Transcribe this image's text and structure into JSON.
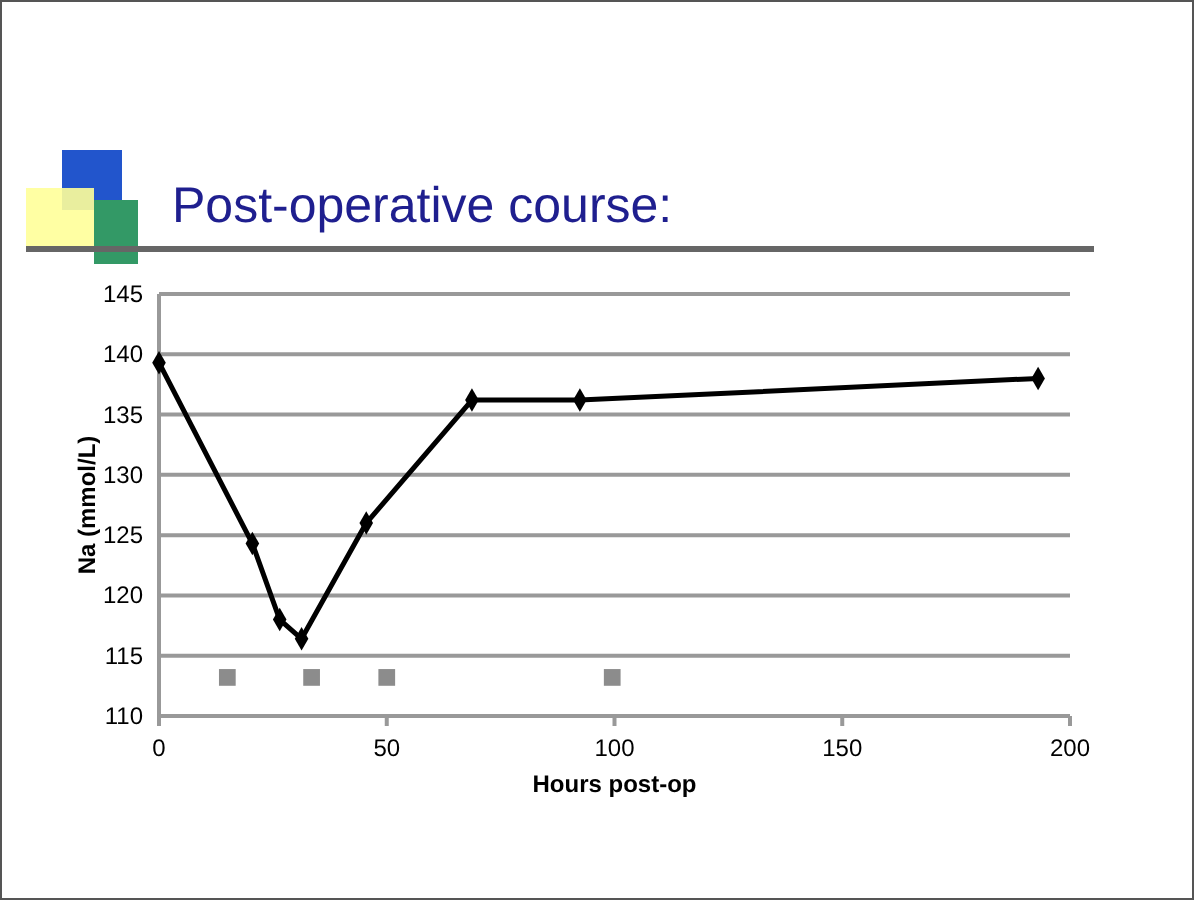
{
  "chart_data": {
    "type": "line",
    "title": "Post-operative course:",
    "xlabel": "Hours post-op",
    "ylabel": "Na (mmol/L)",
    "series": [
      {
        "color": "#000000",
        "marker": "diamond",
        "x": [
          0,
          20.5,
          26.5,
          31.3,
          45.5,
          68.7,
          92.4,
          193
        ],
        "values": [
          139.3,
          124.3,
          118,
          116.4,
          126,
          136.2,
          136.2,
          138
        ]
      },
      {
        "type": "scatter",
        "color": "#8c8c8c",
        "marker": "square",
        "x": [
          15,
          33.5,
          50,
          99.5
        ],
        "values": [
          113.2,
          113.2,
          113.2,
          113.2
        ]
      }
    ],
    "xlim": [
      0,
      200
    ],
    "xticks": [
      0,
      50,
      100,
      150,
      200
    ],
    "ylim": [
      110,
      145
    ],
    "yticks": [
      110,
      115,
      120,
      125,
      130,
      135,
      140,
      145
    ],
    "grid": "y"
  }
}
